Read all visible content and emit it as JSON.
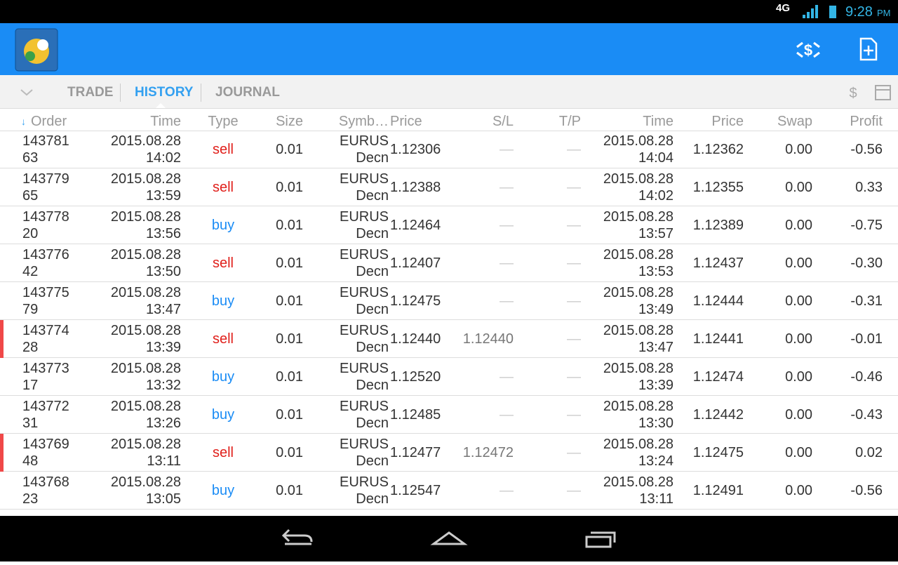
{
  "status_bar": {
    "network": "4G",
    "time": "9:28",
    "ampm": "PM"
  },
  "tabs": [
    "TRADE",
    "HISTORY",
    "JOURNAL"
  ],
  "active_tab": 1,
  "table": {
    "columns": [
      "Order",
      "Time",
      "Type",
      "Size",
      "Symb…",
      "Price",
      "S/L",
      "T/P",
      "Time",
      "Price",
      "Swap",
      "Profit"
    ],
    "rows": [
      [
        "14378163",
        "2015.08.28 14:02",
        "sell",
        "0.01",
        "EURUSDecn",
        "1.12306",
        "—",
        "—",
        "2015.08.28 14:04",
        "1.12362",
        "0.00",
        "-0.56"
      ],
      [
        "14377965",
        "2015.08.28 13:59",
        "sell",
        "0.01",
        "EURUSDecn",
        "1.12388",
        "—",
        "—",
        "2015.08.28 14:02",
        "1.12355",
        "0.00",
        "0.33"
      ],
      [
        "14377820",
        "2015.08.28 13:56",
        "buy",
        "0.01",
        "EURUSDecn",
        "1.12464",
        "—",
        "—",
        "2015.08.28 13:57",
        "1.12389",
        "0.00",
        "-0.75"
      ],
      [
        "14377642",
        "2015.08.28 13:50",
        "sell",
        "0.01",
        "EURUSDecn",
        "1.12407",
        "—",
        "—",
        "2015.08.28 13:53",
        "1.12437",
        "0.00",
        "-0.30"
      ],
      [
        "14377579",
        "2015.08.28 13:47",
        "buy",
        "0.01",
        "EURUSDecn",
        "1.12475",
        "—",
        "—",
        "2015.08.28 13:49",
        "1.12444",
        "0.00",
        "-0.31"
      ],
      [
        "14377428",
        "2015.08.28 13:39",
        "sell",
        "0.01",
        "EURUSDecn",
        "1.12440",
        "1.12440",
        "—",
        "2015.08.28 13:47",
        "1.12441",
        "0.00",
        "-0.01"
      ],
      [
        "14377317",
        "2015.08.28 13:32",
        "buy",
        "0.01",
        "EURUSDecn",
        "1.12520",
        "—",
        "—",
        "2015.08.28 13:39",
        "1.12474",
        "0.00",
        "-0.46"
      ],
      [
        "14377231",
        "2015.08.28 13:26",
        "buy",
        "0.01",
        "EURUSDecn",
        "1.12485",
        "—",
        "—",
        "2015.08.28 13:30",
        "1.12442",
        "0.00",
        "-0.43"
      ],
      [
        "14376948",
        "2015.08.28 13:11",
        "sell",
        "0.01",
        "EURUSDecn",
        "1.12477",
        "1.12472",
        "—",
        "2015.08.28 13:24",
        "1.12475",
        "0.00",
        "0.02"
      ],
      [
        "14376823",
        "2015.08.28 13:05",
        "buy",
        "0.01",
        "EURUSDecn",
        "1.12547",
        "—",
        "—",
        "2015.08.28 13:11",
        "1.12491",
        "0.00",
        "-0.56"
      ]
    ],
    "type_colors": {
      "sell": "#e0201b",
      "buy": "#1a8cf5"
    },
    "marker_color": "#f04848"
  }
}
